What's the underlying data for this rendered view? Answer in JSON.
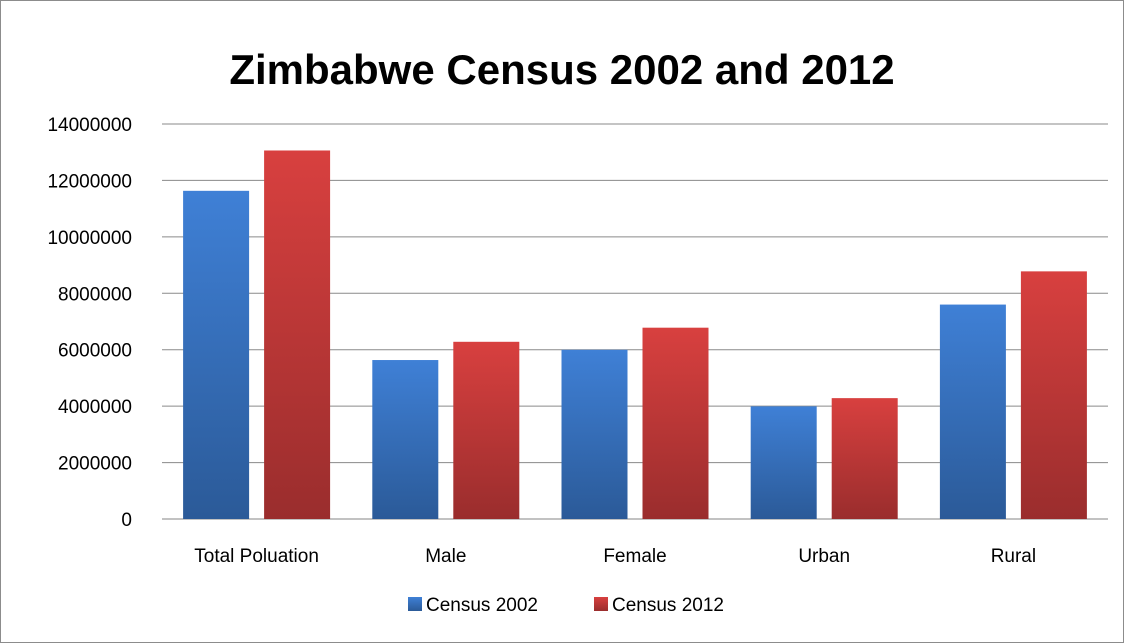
{
  "chart_data": {
    "type": "bar",
    "title": "Zimbabwe Census 2002 and 2012",
    "categories": [
      "Total Poluation",
      "Male",
      "Female",
      "Urban",
      "Rural"
    ],
    "series": [
      {
        "name": "Census 2002",
        "color": "#3c78c8",
        "values": [
          11631657,
          5634180,
          5997477,
          3992000,
          7600000
        ]
      },
      {
        "name": "Census 2012",
        "color": "#c83c3c",
        "values": [
          13061239,
          6280539,
          6780700,
          4284000,
          8777000
        ]
      }
    ],
    "ylim": [
      0,
      14000000
    ],
    "yticks": [
      0,
      2000000,
      4000000,
      6000000,
      8000000,
      10000000,
      12000000,
      14000000
    ],
    "grid": true,
    "legend": "bottom",
    "xlabel": "",
    "ylabel": ""
  }
}
